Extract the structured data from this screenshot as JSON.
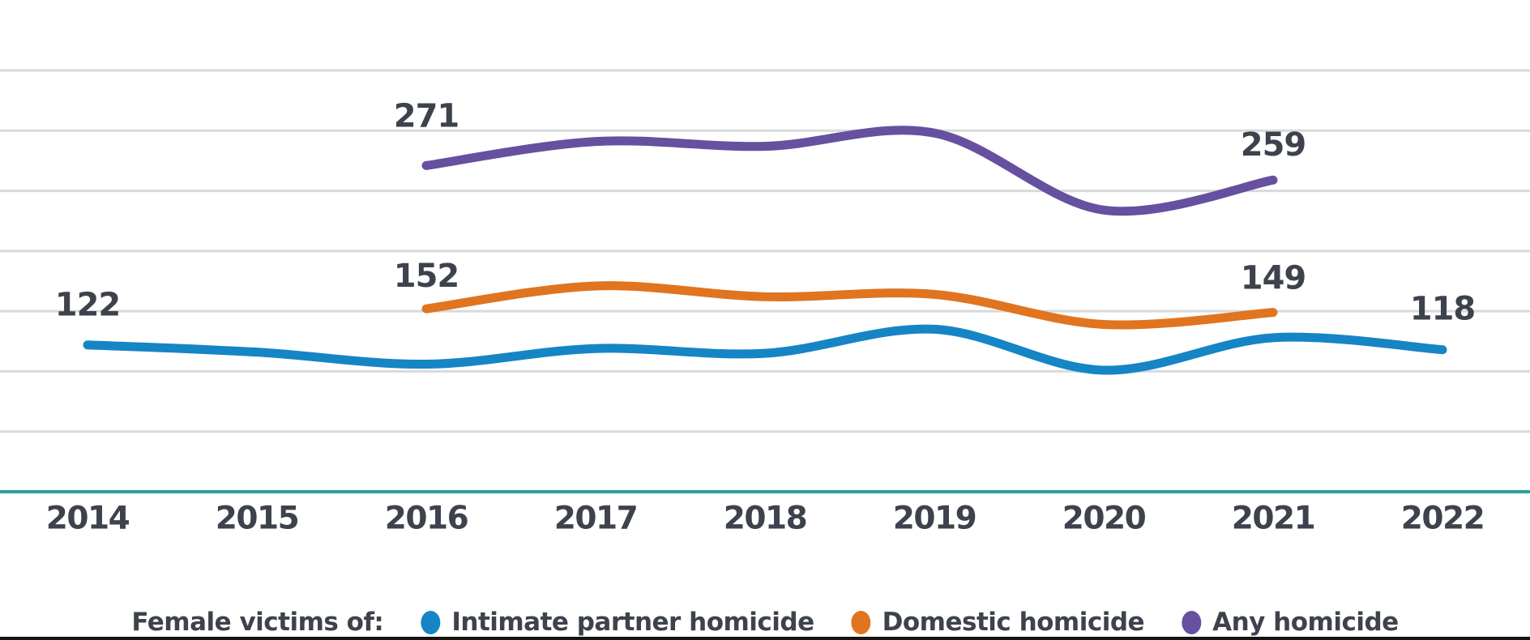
{
  "chart_data": {
    "type": "line",
    "title": "",
    "x_categories": [
      "2014",
      "2015",
      "2016",
      "2017",
      "2018",
      "2019",
      "2020",
      "2021",
      "2022"
    ],
    "x_range": [
      2014,
      2022
    ],
    "ylim": [
      0,
      350
    ],
    "grid_values": [
      50,
      100,
      150,
      200,
      250,
      300,
      350
    ],
    "grid_on": true,
    "legend_position": "bottom",
    "series": [
      {
        "name": "Intimate partner homicide",
        "color": "#1585c5",
        "points": [
          [
            2014,
            122
          ],
          [
            2015,
            116
          ],
          [
            2016,
            106
          ],
          [
            2017,
            119
          ],
          [
            2018,
            115
          ],
          [
            2019,
            135
          ],
          [
            2020,
            101
          ],
          [
            2021,
            128
          ],
          [
            2022,
            118
          ]
        ]
      },
      {
        "name": "Domestic homicide",
        "color": "#e1741f",
        "points": [
          [
            2016,
            152
          ],
          [
            2017,
            171
          ],
          [
            2018,
            162
          ],
          [
            2019,
            164
          ],
          [
            2020,
            139
          ],
          [
            2021,
            149
          ]
        ]
      },
      {
        "name": "Any homicide",
        "color": "#66509f",
        "points": [
          [
            2016,
            271
          ],
          [
            2017,
            291
          ],
          [
            2018,
            287
          ],
          [
            2019,
            298
          ],
          [
            2020,
            234
          ],
          [
            2021,
            259
          ]
        ]
      }
    ],
    "annotations": [
      {
        "text": "122",
        "year": 2014,
        "value": 122,
        "dy": -49
      },
      {
        "text": "271",
        "year": 2016,
        "value": 271,
        "dy": -61
      },
      {
        "text": "152",
        "year": 2016,
        "value": 152,
        "dy": -40
      },
      {
        "text": "259",
        "year": 2021,
        "value": 259,
        "dy": -43
      },
      {
        "text": "149",
        "year": 2021,
        "value": 149,
        "dy": -42
      },
      {
        "text": "118",
        "year": 2022,
        "value": 118,
        "dy": -50
      }
    ],
    "colors": {
      "grid": "#d9d9d9",
      "baseline": "#2aa198",
      "text": "#3d424c"
    }
  },
  "legend": {
    "prefix": "Female victims of:",
    "items": [
      {
        "label": "Intimate partner homicide",
        "color": "#1585c5"
      },
      {
        "label": "Domestic homicide",
        "color": "#e1741f"
      },
      {
        "label": "Any homicide",
        "color": "#66509f"
      }
    ]
  }
}
